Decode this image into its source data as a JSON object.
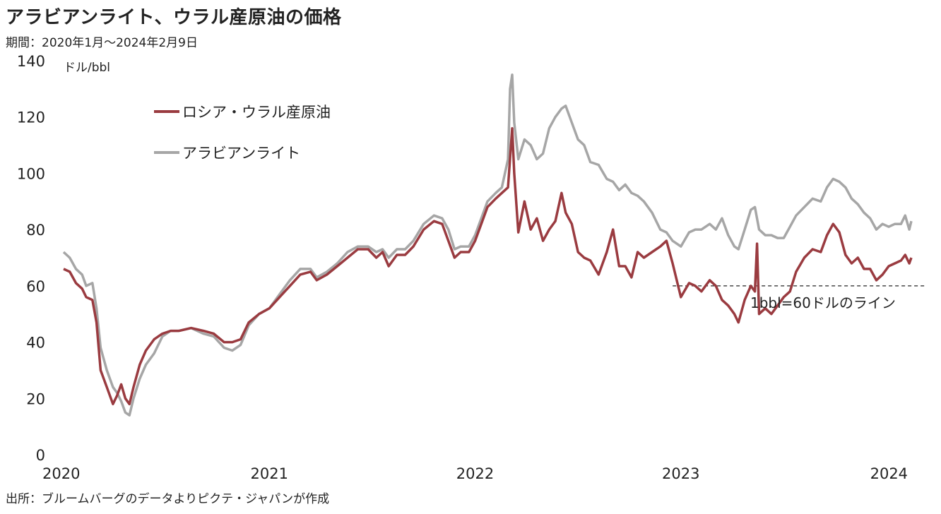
{
  "header": {
    "title": "アラビアンライト、ウラル産原油の価格",
    "period": "期間：2020年1月～2024年2月9日"
  },
  "footer": {
    "source": "出所：ブルームバーグのデータよりピクテ・ジャパンが作成"
  },
  "chart_data": {
    "type": "line",
    "title": "アラビアンライト、ウラル産原油の価格",
    "ylabel": "ドル/bbl",
    "xlabel": "",
    "ylim": [
      0,
      140
    ],
    "xlim": [
      2020.0,
      2024.12
    ],
    "yticks": [
      0,
      20,
      40,
      60,
      80,
      100,
      120,
      140
    ],
    "xticks": [
      2020,
      2021,
      2022,
      2023,
      2024
    ],
    "xtick_labels": [
      "2020",
      "2021",
      "2022",
      "2023",
      "2024"
    ],
    "grid": false,
    "legend_position": "top-left",
    "colors": {
      "urals": "#9a3b40",
      "arab_light": "#a6a6a6"
    },
    "series": [
      {
        "name": "ロシア・ウラル産原油",
        "color": "#9a3b40",
        "points": [
          [
            2020.0,
            66
          ],
          [
            2020.03,
            65
          ],
          [
            2020.06,
            61
          ],
          [
            2020.09,
            59
          ],
          [
            2020.11,
            56
          ],
          [
            2020.14,
            55
          ],
          [
            2020.16,
            47
          ],
          [
            2020.18,
            30
          ],
          [
            2020.21,
            24
          ],
          [
            2020.24,
            18
          ],
          [
            2020.26,
            21
          ],
          [
            2020.28,
            25
          ],
          [
            2020.3,
            20
          ],
          [
            2020.32,
            18
          ],
          [
            2020.34,
            24
          ],
          [
            2020.37,
            32
          ],
          [
            2020.4,
            37
          ],
          [
            2020.44,
            41
          ],
          [
            2020.48,
            43
          ],
          [
            2020.52,
            44
          ],
          [
            2020.56,
            44
          ],
          [
            2020.62,
            45
          ],
          [
            2020.68,
            44
          ],
          [
            2020.73,
            43
          ],
          [
            2020.78,
            40
          ],
          [
            2020.82,
            40
          ],
          [
            2020.86,
            41
          ],
          [
            2020.9,
            47
          ],
          [
            2020.95,
            50
          ],
          [
            2021.0,
            52
          ],
          [
            2021.05,
            56
          ],
          [
            2021.1,
            60
          ],
          [
            2021.15,
            64
          ],
          [
            2021.2,
            65
          ],
          [
            2021.23,
            62
          ],
          [
            2021.28,
            64
          ],
          [
            2021.33,
            67
          ],
          [
            2021.38,
            70
          ],
          [
            2021.43,
            73
          ],
          [
            2021.48,
            73
          ],
          [
            2021.52,
            70
          ],
          [
            2021.55,
            72
          ],
          [
            2021.58,
            67
          ],
          [
            2021.62,
            71
          ],
          [
            2021.66,
            71
          ],
          [
            2021.7,
            74
          ],
          [
            2021.75,
            80
          ],
          [
            2021.8,
            83
          ],
          [
            2021.84,
            82
          ],
          [
            2021.87,
            76
          ],
          [
            2021.9,
            70
          ],
          [
            2021.93,
            72
          ],
          [
            2021.97,
            72
          ],
          [
            2022.0,
            76
          ],
          [
            2022.03,
            82
          ],
          [
            2022.06,
            88
          ],
          [
            2022.1,
            91
          ],
          [
            2022.13,
            93
          ],
          [
            2022.16,
            95
          ],
          [
            2022.18,
            116
          ],
          [
            2022.19,
            100
          ],
          [
            2022.21,
            79
          ],
          [
            2022.24,
            90
          ],
          [
            2022.27,
            80
          ],
          [
            2022.3,
            84
          ],
          [
            2022.33,
            76
          ],
          [
            2022.36,
            80
          ],
          [
            2022.39,
            83
          ],
          [
            2022.42,
            93
          ],
          [
            2022.44,
            86
          ],
          [
            2022.47,
            82
          ],
          [
            2022.5,
            72
          ],
          [
            2022.53,
            70
          ],
          [
            2022.56,
            69
          ],
          [
            2022.6,
            64
          ],
          [
            2022.64,
            72
          ],
          [
            2022.67,
            80
          ],
          [
            2022.7,
            67
          ],
          [
            2022.73,
            67
          ],
          [
            2022.76,
            63
          ],
          [
            2022.79,
            72
          ],
          [
            2022.82,
            70
          ],
          [
            2022.86,
            72
          ],
          [
            2022.9,
            74
          ],
          [
            2022.93,
            76
          ],
          [
            2022.96,
            68
          ],
          [
            2023.0,
            56
          ],
          [
            2023.04,
            61
          ],
          [
            2023.07,
            60
          ],
          [
            2023.1,
            58
          ],
          [
            2023.14,
            62
          ],
          [
            2023.17,
            60
          ],
          [
            2023.2,
            55
          ],
          [
            2023.23,
            53
          ],
          [
            2023.26,
            50
          ],
          [
            2023.28,
            47
          ],
          [
            2023.31,
            55
          ],
          [
            2023.34,
            60
          ],
          [
            2023.36,
            58
          ],
          [
            2023.37,
            75
          ],
          [
            2023.38,
            50
          ],
          [
            2023.41,
            52
          ],
          [
            2023.44,
            50
          ],
          [
            2023.47,
            53
          ],
          [
            2023.5,
            56
          ],
          [
            2023.53,
            58
          ],
          [
            2023.56,
            65
          ],
          [
            2023.6,
            70
          ],
          [
            2023.64,
            73
          ],
          [
            2023.68,
            72
          ],
          [
            2023.71,
            78
          ],
          [
            2023.74,
            82
          ],
          [
            2023.77,
            79
          ],
          [
            2023.8,
            71
          ],
          [
            2023.83,
            68
          ],
          [
            2023.86,
            70
          ],
          [
            2023.89,
            66
          ],
          [
            2023.92,
            66
          ],
          [
            2023.95,
            62
          ],
          [
            2023.98,
            64
          ],
          [
            2024.01,
            67
          ],
          [
            2024.04,
            68
          ],
          [
            2024.07,
            69
          ],
          [
            2024.09,
            71
          ],
          [
            2024.11,
            68
          ],
          [
            2024.12,
            70
          ]
        ]
      },
      {
        "name": "アラビアンライト",
        "color": "#a6a6a6",
        "points": [
          [
            2020.0,
            72
          ],
          [
            2020.03,
            70
          ],
          [
            2020.06,
            66
          ],
          [
            2020.09,
            64
          ],
          [
            2020.11,
            60
          ],
          [
            2020.14,
            61
          ],
          [
            2020.16,
            52
          ],
          [
            2020.18,
            38
          ],
          [
            2020.21,
            30
          ],
          [
            2020.24,
            24
          ],
          [
            2020.26,
            22
          ],
          [
            2020.28,
            19
          ],
          [
            2020.3,
            15
          ],
          [
            2020.32,
            14
          ],
          [
            2020.34,
            20
          ],
          [
            2020.37,
            27
          ],
          [
            2020.4,
            32
          ],
          [
            2020.44,
            36
          ],
          [
            2020.48,
            42
          ],
          [
            2020.52,
            44
          ],
          [
            2020.56,
            44
          ],
          [
            2020.62,
            45
          ],
          [
            2020.68,
            43
          ],
          [
            2020.73,
            42
          ],
          [
            2020.78,
            38
          ],
          [
            2020.82,
            37
          ],
          [
            2020.86,
            39
          ],
          [
            2020.9,
            46
          ],
          [
            2020.95,
            50
          ],
          [
            2021.0,
            52
          ],
          [
            2021.05,
            57
          ],
          [
            2021.1,
            62
          ],
          [
            2021.15,
            66
          ],
          [
            2021.2,
            66
          ],
          [
            2021.23,
            63
          ],
          [
            2021.28,
            65
          ],
          [
            2021.33,
            68
          ],
          [
            2021.38,
            72
          ],
          [
            2021.43,
            74
          ],
          [
            2021.48,
            74
          ],
          [
            2021.52,
            72
          ],
          [
            2021.55,
            73
          ],
          [
            2021.58,
            70
          ],
          [
            2021.62,
            73
          ],
          [
            2021.66,
            73
          ],
          [
            2021.7,
            76
          ],
          [
            2021.75,
            82
          ],
          [
            2021.8,
            85
          ],
          [
            2021.84,
            84
          ],
          [
            2021.87,
            80
          ],
          [
            2021.9,
            73
          ],
          [
            2021.93,
            74
          ],
          [
            2021.97,
            74
          ],
          [
            2022.0,
            78
          ],
          [
            2022.03,
            84
          ],
          [
            2022.06,
            90
          ],
          [
            2022.1,
            93
          ],
          [
            2022.13,
            95
          ],
          [
            2022.16,
            105
          ],
          [
            2022.17,
            130
          ],
          [
            2022.18,
            135
          ],
          [
            2022.19,
            118
          ],
          [
            2022.21,
            105
          ],
          [
            2022.24,
            112
          ],
          [
            2022.27,
            110
          ],
          [
            2022.3,
            105
          ],
          [
            2022.33,
            107
          ],
          [
            2022.36,
            116
          ],
          [
            2022.39,
            120
          ],
          [
            2022.42,
            123
          ],
          [
            2022.44,
            124
          ],
          [
            2022.47,
            118
          ],
          [
            2022.5,
            112
          ],
          [
            2022.53,
            110
          ],
          [
            2022.56,
            104
          ],
          [
            2022.6,
            103
          ],
          [
            2022.64,
            98
          ],
          [
            2022.67,
            97
          ],
          [
            2022.7,
            94
          ],
          [
            2022.73,
            96
          ],
          [
            2022.76,
            93
          ],
          [
            2022.79,
            92
          ],
          [
            2022.82,
            90
          ],
          [
            2022.86,
            86
          ],
          [
            2022.9,
            80
          ],
          [
            2022.93,
            79
          ],
          [
            2022.96,
            76
          ],
          [
            2023.0,
            74
          ],
          [
            2023.04,
            79
          ],
          [
            2023.07,
            80
          ],
          [
            2023.1,
            80
          ],
          [
            2023.14,
            82
          ],
          [
            2023.17,
            80
          ],
          [
            2023.2,
            84
          ],
          [
            2023.23,
            78
          ],
          [
            2023.26,
            74
          ],
          [
            2023.28,
            73
          ],
          [
            2023.31,
            80
          ],
          [
            2023.34,
            87
          ],
          [
            2023.36,
            88
          ],
          [
            2023.38,
            80
          ],
          [
            2023.41,
            78
          ],
          [
            2023.44,
            78
          ],
          [
            2023.47,
            77
          ],
          [
            2023.5,
            77
          ],
          [
            2023.53,
            81
          ],
          [
            2023.56,
            85
          ],
          [
            2023.6,
            88
          ],
          [
            2023.64,
            91
          ],
          [
            2023.68,
            90
          ],
          [
            2023.71,
            95
          ],
          [
            2023.74,
            98
          ],
          [
            2023.77,
            97
          ],
          [
            2023.8,
            95
          ],
          [
            2023.83,
            91
          ],
          [
            2023.86,
            89
          ],
          [
            2023.89,
            86
          ],
          [
            2023.92,
            84
          ],
          [
            2023.95,
            80
          ],
          [
            2023.98,
            82
          ],
          [
            2024.01,
            81
          ],
          [
            2024.04,
            82
          ],
          [
            2024.07,
            82
          ],
          [
            2024.09,
            85
          ],
          [
            2024.11,
            80
          ],
          [
            2024.12,
            83
          ]
        ]
      }
    ],
    "reference_line": {
      "y": 60,
      "label": "1bbl=60ドルのライン",
      "style": "dashed"
    },
    "legend": [
      {
        "label": "ロシア・ウラル産原油",
        "color": "#9a3b40"
      },
      {
        "label": "アラビアンライト",
        "color": "#a6a6a6"
      }
    ]
  }
}
